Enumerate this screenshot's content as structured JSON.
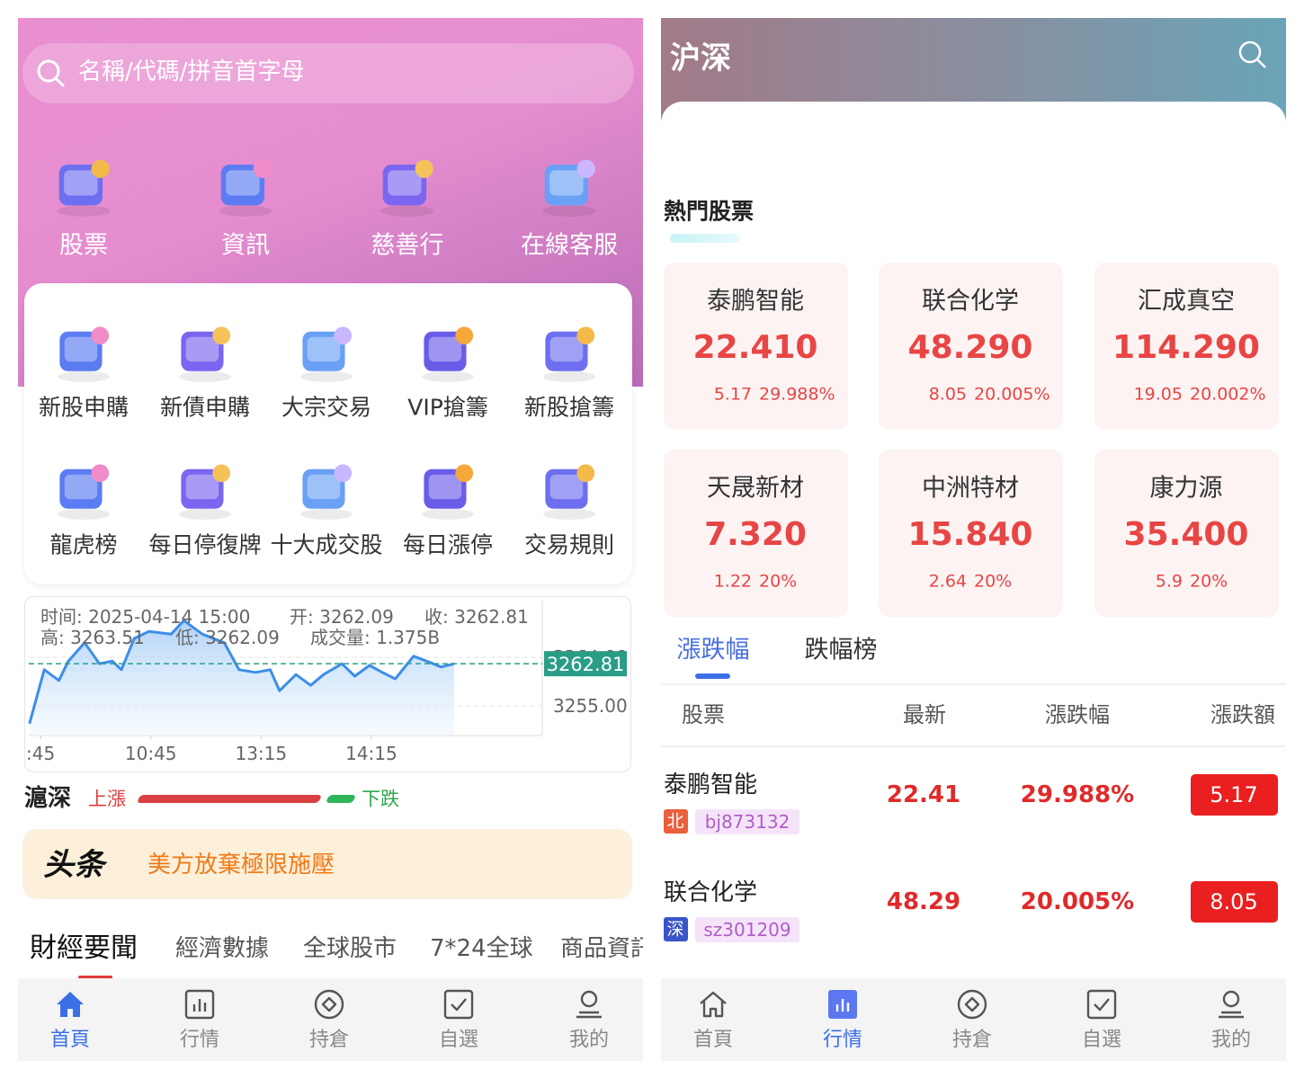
{
  "left": {
    "search_placeholder": "名稱/代碼/拼音首字母",
    "top_menu": [
      "股票",
      "資訊",
      "慈善行",
      "在線客服"
    ],
    "grid_menu": [
      "新股申購",
      "新債申購",
      "大宗交易",
      "VIP搶籌",
      "新股搶籌",
      "龍虎榜",
      "每日停復牌",
      "十大成交股",
      "每日漲停",
      "交易規則"
    ],
    "chart": {
      "type": "line",
      "info": {
        "time": "时间: 2025-04-14 15:00",
        "open": "开: 3262.09",
        "close": "收: 3262.81",
        "high": "高: 3263.51",
        "low": "低: 3262.09",
        "volume": "成交量: 1.375B"
      },
      "x": [
        9,
        17,
        25,
        30,
        39,
        47,
        54,
        59,
        66,
        74,
        86,
        93,
        103,
        115,
        123,
        132,
        140,
        145,
        154,
        162,
        169,
        179,
        186,
        194,
        201,
        208,
        218,
        225,
        233,
        240
      ],
      "values": [
        3251.7,
        3261.7,
        3259.7,
        3263.2,
        3266.7,
        3262.8,
        3263.3,
        3261.7,
        3267.5,
        3268.8,
        3268.3,
        3270.8,
        3268.3,
        3266.7,
        3261.7,
        3261.2,
        3261.7,
        3257.8,
        3260.8,
        3258.8,
        3260.8,
        3262.8,
        3260.5,
        3262.5,
        3261.2,
        3260.0,
        3264.2,
        3263.3,
        3262.2,
        3262.8
      ],
      "xlim": [
        8.6,
        288
      ],
      "xticks": [
        {
          "value": 15,
          "label": ":45"
        },
        {
          "value": 75,
          "label": "10:45"
        },
        {
          "value": 135,
          "label": "13:15"
        },
        {
          "value": 195,
          "label": "14:15"
        }
      ],
      "ylim": [
        3249.5,
        3274.5
      ],
      "yticks": [
        {
          "value": 3255,
          "label": "3255.00"
        },
        {
          "value": 3264,
          "label": "3264.00"
        }
      ],
      "last": {
        "value": 3262.81,
        "label": "3262.81"
      }
    },
    "market_bar": {
      "title": "滬深",
      "up": "上漲",
      "down": "下跌"
    },
    "headline": {
      "badge": "头条",
      "text": "美方放棄極限施壓"
    },
    "news_tabs": [
      "財經要聞",
      "經濟數據",
      "全球股市",
      "7*24全球",
      "商品資訊"
    ],
    "nav": [
      "首頁",
      "行情",
      "持倉",
      "自選",
      "我的"
    ]
  },
  "right": {
    "title": "沪深",
    "section_title": "熱門股票",
    "cards": [
      {
        "name": "泰鹏智能",
        "price": "22.410",
        "change": "5.17",
        "pct": "29.988%"
      },
      {
        "name": "联合化学",
        "price": "48.290",
        "change": "8.05",
        "pct": "20.005%"
      },
      {
        "name": "汇成真空",
        "price": "114.290",
        "change": "19.05",
        "pct": "20.002%"
      },
      {
        "name": "天晟新材",
        "price": "7.320",
        "change": "1.22",
        "pct": "20%"
      },
      {
        "name": "中洲特材",
        "price": "15.840",
        "change": "2.64",
        "pct": "20%"
      },
      {
        "name": "康力源",
        "price": "35.400",
        "change": "5.9",
        "pct": "20%"
      }
    ],
    "tabs": [
      "漲跌幅",
      "跌幅榜"
    ],
    "table": {
      "headers": [
        "股票",
        "最新",
        "漲跌幅",
        "漲跌額"
      ],
      "rows": [
        {
          "name": "泰鹏智能",
          "exchange": "北",
          "code": "bj873132",
          "latest": "22.41",
          "pct": "29.988%",
          "change": "5.17"
        },
        {
          "name": "联合化学",
          "exchange": "深",
          "code": "sz301209",
          "latest": "48.29",
          "pct": "20.005%",
          "change": "8.05"
        }
      ]
    },
    "nav": [
      "首頁",
      "行情",
      "持倉",
      "自選",
      "我的"
    ]
  }
}
